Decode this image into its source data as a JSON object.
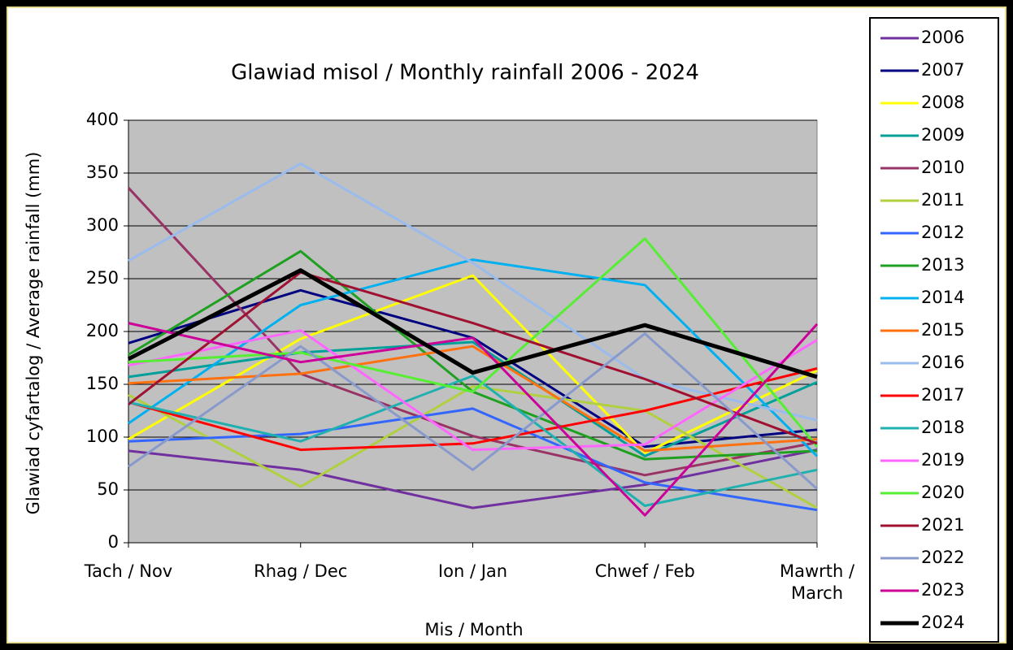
{
  "chart_data": {
    "type": "line",
    "title": "Glawiad misol / Monthly rainfall 2006 - 2024",
    "x_label": "Mis / Month",
    "y_label": "Glawiad cyfartalog / Average rainfall (mm)",
    "categories": [
      "Tach / Nov",
      "Rhag / Dec",
      "Ion / Jan",
      "Chwef / Feb",
      "Mawrth / March"
    ],
    "ylim": [
      0,
      400
    ],
    "yticks": [
      0,
      50,
      100,
      150,
      200,
      250,
      300,
      350,
      400
    ],
    "grid": true,
    "legend": "right",
    "series": [
      {
        "name": "2006",
        "color": "#7030a0",
        "values": [
          87,
          69,
          33,
          55,
          88
        ]
      },
      {
        "name": "2007",
        "color": "#000080",
        "values": [
          189,
          239,
          194,
          91,
          107
        ]
      },
      {
        "name": "2008",
        "color": "#ffff00",
        "values": [
          98,
          193,
          253,
          85,
          163
        ]
      },
      {
        "name": "2009",
        "color": "#00a09a",
        "values": [
          157,
          180,
          190,
          82,
          152
        ]
      },
      {
        "name": "2010",
        "color": "#993366",
        "values": [
          336,
          160,
          101,
          64,
          95
        ]
      },
      {
        "name": "2011",
        "color": "#b0d040",
        "values": [
          140,
          53,
          148,
          125,
          33
        ]
      },
      {
        "name": "2012",
        "color": "#3366ff",
        "values": [
          96,
          103,
          127,
          57,
          31
        ]
      },
      {
        "name": "2013",
        "color": "#20a020",
        "values": [
          178,
          276,
          143,
          79,
          87
        ]
      },
      {
        "name": "2014",
        "color": "#00b0f0",
        "values": [
          113,
          225,
          268,
          244,
          82
        ]
      },
      {
        "name": "2015",
        "color": "#ff7010",
        "values": [
          151,
          160,
          186,
          87,
          98
        ]
      },
      {
        "name": "2016",
        "color": "#99bbee",
        "values": [
          267,
          359,
          265,
          155,
          116
        ]
      },
      {
        "name": "2017",
        "color": "#ff0000",
        "values": [
          133,
          88,
          94,
          125,
          165
        ]
      },
      {
        "name": "2018",
        "color": "#20b0b0",
        "values": [
          133,
          96,
          158,
          35,
          69
        ]
      },
      {
        "name": "2019",
        "color": "#ff66ff",
        "values": [
          168,
          201,
          88,
          93,
          192
        ]
      },
      {
        "name": "2020",
        "color": "#55ee33",
        "values": [
          171,
          180,
          143,
          288,
          91
        ]
      },
      {
        "name": "2021",
        "color": "#a01030",
        "values": [
          131,
          256,
          208,
          155,
          94
        ]
      },
      {
        "name": "2022",
        "color": "#8899cc",
        "values": [
          72,
          186,
          69,
          198,
          51
        ]
      },
      {
        "name": "2023",
        "color": "#cc0099",
        "values": [
          208,
          171,
          194,
          26,
          207
        ]
      },
      {
        "name": "2024",
        "color": "#000000",
        "values": [
          174,
          258,
          161,
          206,
          157
        ]
      }
    ]
  }
}
